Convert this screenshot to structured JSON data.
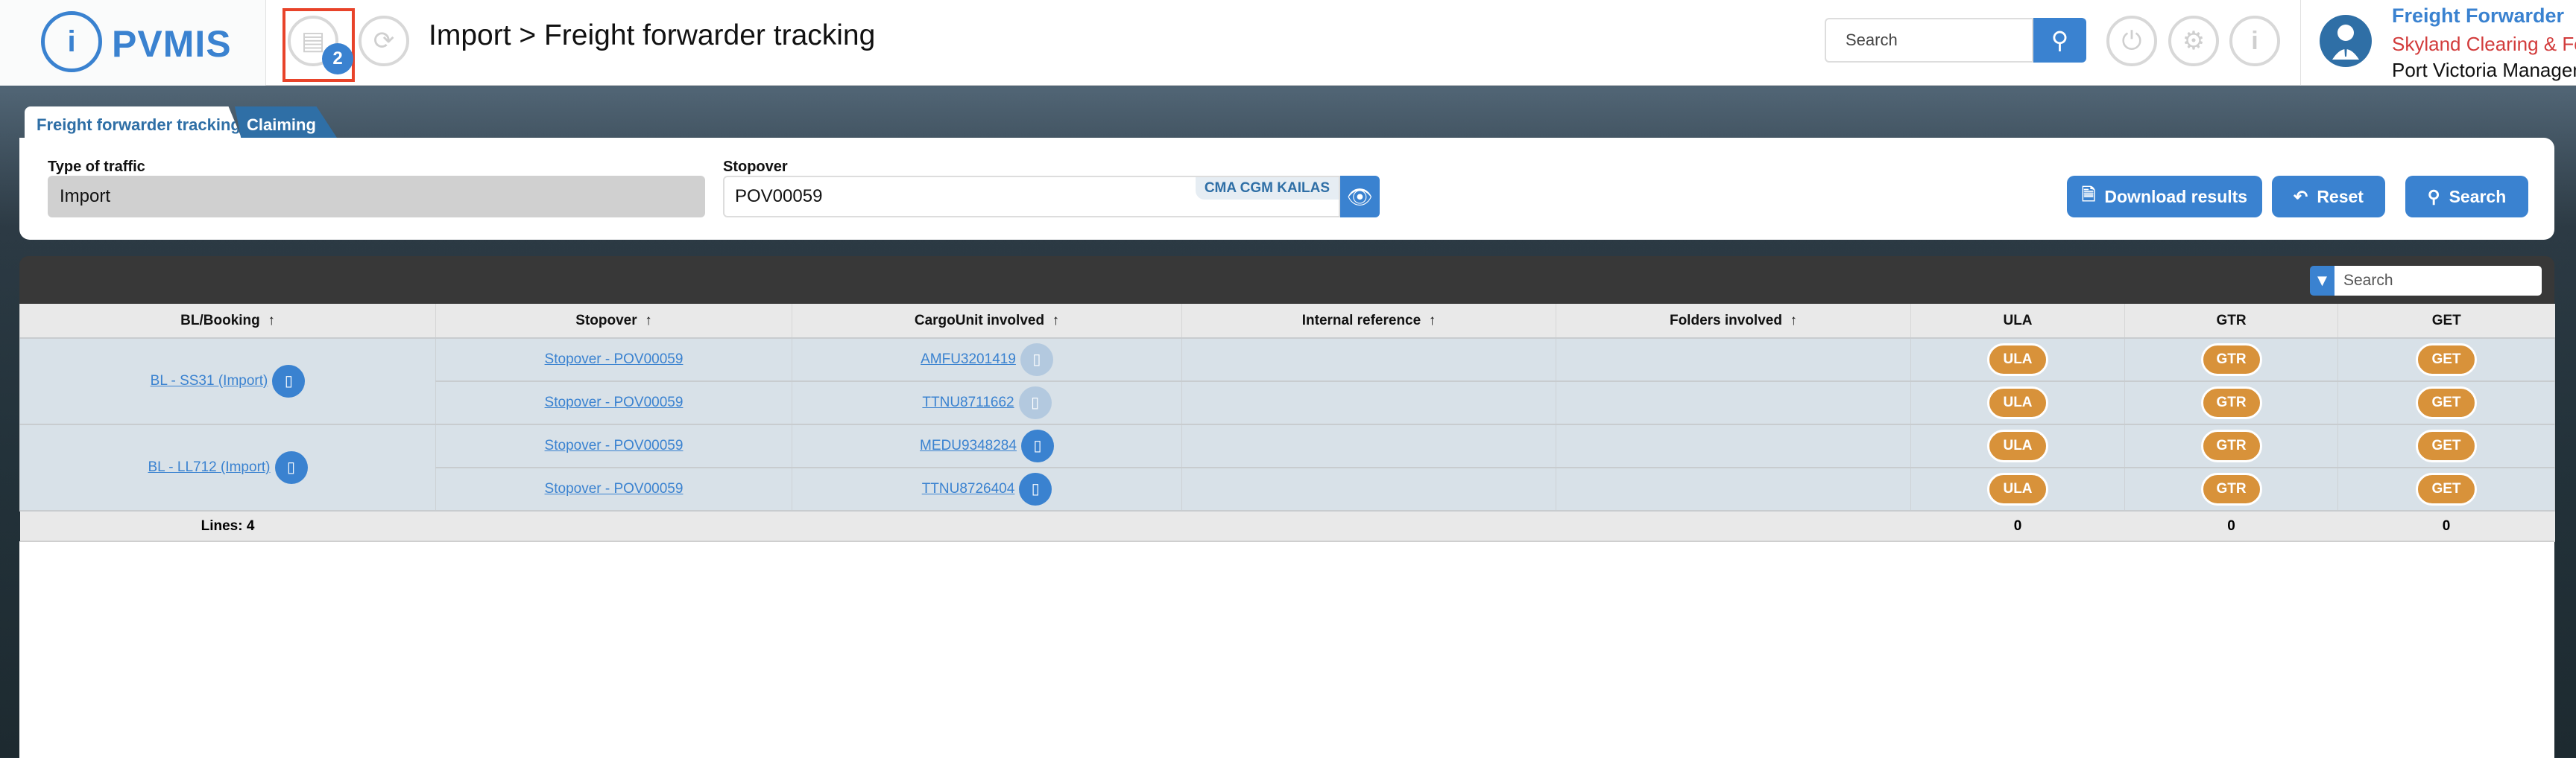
{
  "header": {
    "logo_text": "PVMIS",
    "notification_count": "2",
    "title": "Import > Freight forwarder tracking",
    "search_placeholder": "Search",
    "user": {
      "role": "Freight Forwarder",
      "company": "Skyland Clearing & Forv",
      "org": "Port Victoria Managem"
    }
  },
  "tabs": [
    {
      "label": "Freight forwarder tracking",
      "active": true
    },
    {
      "label": "Claiming",
      "active": false
    }
  ],
  "filters": {
    "type_label": "Type of traffic",
    "type_value": "Import",
    "stopover_label": "Stopover",
    "stopover_value": "POV00059",
    "vessel_badge": "CMA CGM KAILAS",
    "download_label": "Download results",
    "reset_label": "Reset",
    "search_label": "Search"
  },
  "table": {
    "search_placeholder": "Search",
    "columns": [
      "BL/Booking",
      "Stopover",
      "CargoUnit involved",
      "Internal reference",
      "Folders involved",
      "ULA",
      "GTR",
      "GET"
    ],
    "groups": [
      {
        "bl": "BL - SS31 (Import)",
        "rows": [
          {
            "stopover": "Stopover - POV00059",
            "cargo": "AMFU3201419",
            "cargo_icon_enabled": false,
            "ula": "ULA",
            "gtr": "GTR",
            "get": "GET"
          },
          {
            "stopover": "Stopover - POV00059",
            "cargo": "TTNU8711662",
            "cargo_icon_enabled": false,
            "ula": "ULA",
            "gtr": "GTR",
            "get": "GET"
          }
        ]
      },
      {
        "bl": "BL - LL712 (Import)",
        "rows": [
          {
            "stopover": "Stopover - POV00059",
            "cargo": "MEDU9348284",
            "cargo_icon_enabled": true,
            "ula": "ULA",
            "gtr": "GTR",
            "get": "GET"
          },
          {
            "stopover": "Stopover - POV00059",
            "cargo": "TTNU8726404",
            "cargo_icon_enabled": true,
            "ula": "ULA",
            "gtr": "GTR",
            "get": "GET"
          }
        ]
      }
    ],
    "footer": {
      "lines": "Lines: 4",
      "ula": "0",
      "gtr": "0",
      "get": "0"
    }
  },
  "colors": {
    "primary": "#3a82d0",
    "pill": "#d8923a",
    "highlight": "#e8432a",
    "company": "#d23b3b"
  }
}
